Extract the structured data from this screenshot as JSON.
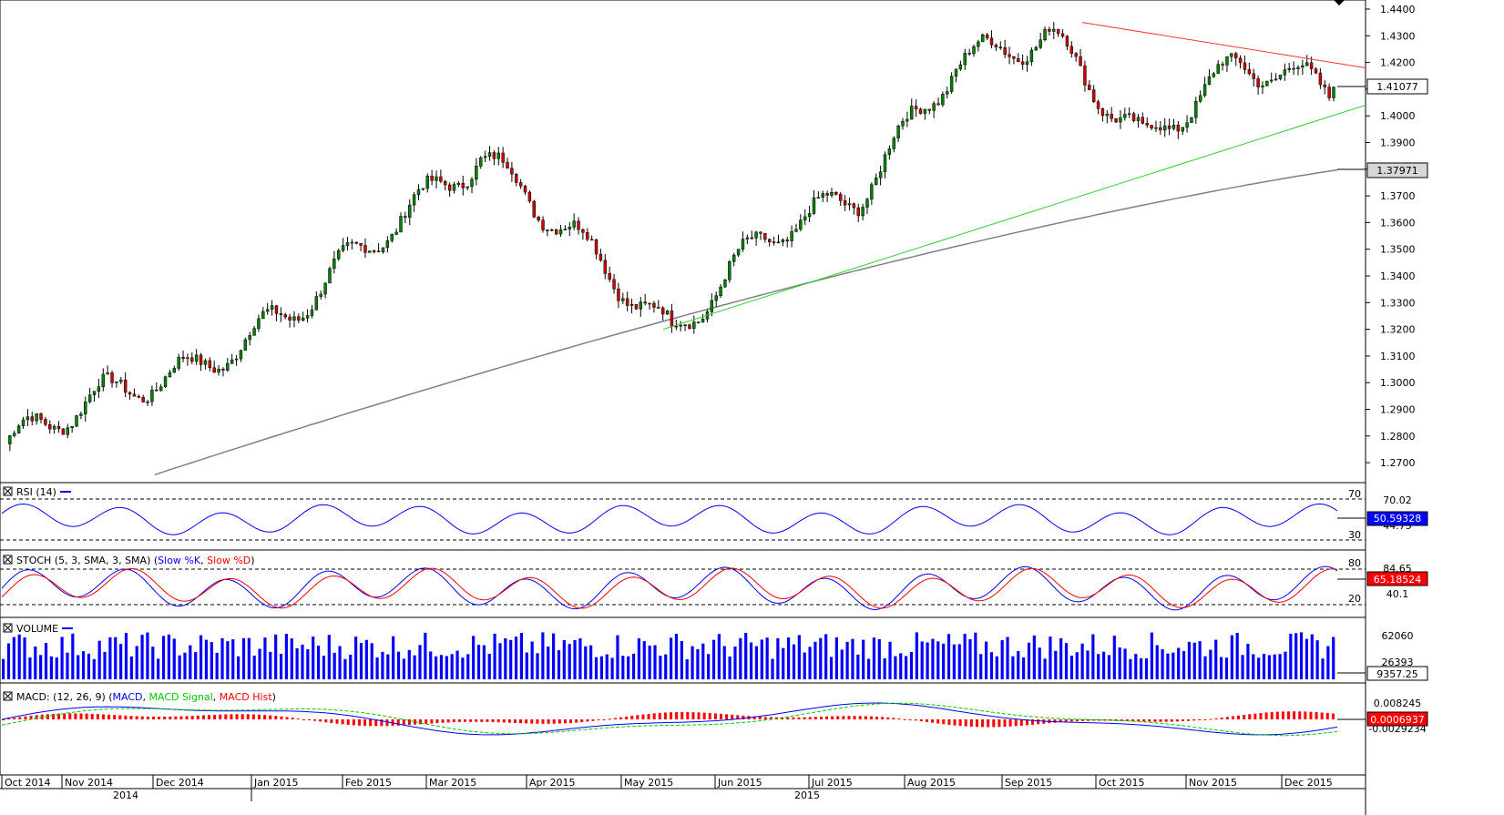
{
  "price_panel": {
    "axis_ticks": [
      "1.4400",
      "1.4300",
      "1.4200",
      "1.4100",
      "1.4000",
      "1.3900",
      "1.3800",
      "1.3700",
      "1.3600",
      "1.3500",
      "1.3400",
      "1.3300",
      "1.3200",
      "1.3100",
      "1.3000",
      "1.2900",
      "1.2800",
      "1.2700"
    ],
    "last_price_label": "1.41077",
    "ma_label": "1.37971",
    "colors": {
      "up": "#008000",
      "down": "#cc0000",
      "ma": "#808080",
      "resistance": "#ff3333",
      "support": "#33cc33"
    }
  },
  "rsi_panel": {
    "title": "RSI (14)",
    "levels": [
      "70",
      "30"
    ],
    "axis_label": "70.02",
    "axis_label_2": "44.75",
    "value_label": "50.59328",
    "color": "#0000ff"
  },
  "stoch_panel": {
    "title": "STOCH (5, 3, SMA, 3, SMA)",
    "legend_k": "Slow %K",
    "legend_d": "Slow %D",
    "levels": [
      "80",
      "20"
    ],
    "axis_label": "84.65",
    "axis_label_2": "40.1",
    "value_label": "65.18524",
    "color_k": "#0000ff",
    "color_d": "#ff0000"
  },
  "volume_panel": {
    "title": "VOLUME",
    "axis_label": "62060",
    "axis_label_2": "26393",
    "value_label": "9357.25",
    "color": "#0000ff"
  },
  "macd_panel": {
    "title": "MACD: (12, 26, 9)",
    "legend_macd": "MACD",
    "legend_signal": "MACD Signal",
    "legend_hist": "MACD Hist",
    "axis_label": "0.008245",
    "axis_label_2": "-0.0029234",
    "value_label": "0.0006937",
    "color_macd": "#0000ff",
    "color_signal": "#00cc00",
    "color_hist": "#ff0000"
  },
  "x_axis": {
    "months": [
      "Oct 2014",
      "Nov 2014",
      "Dec 2014",
      "Jan 2015",
      "Feb 2015",
      "Mar 2015",
      "Apr 2015",
      "May 2015",
      "Jun 2015",
      "Jul 2015",
      "Aug 2015",
      "Sep 2015",
      "Oct 2015",
      "Nov 2015",
      "Dec 2015"
    ],
    "years": [
      "2014",
      "2015"
    ]
  },
  "chart_data": {
    "type": "candlestick",
    "x_range": [
      "Oct 2014",
      "Dec 2015"
    ],
    "ylim": [
      1.265,
      1.445
    ],
    "price_path": {
      "x": [
        "Oct 2014",
        "Nov 2014",
        "Dec 2014",
        "Jan 2015",
        "Feb 2015",
        "Mar 2015",
        "Apr 2015",
        "May 2015",
        "Jun 2015",
        "Jul 2015",
        "Aug 2015",
        "Sep 2015",
        "Oct 2015",
        "Nov 2015",
        "Dec 2015"
      ],
      "close": [
        1.277,
        1.295,
        1.305,
        1.326,
        1.357,
        1.385,
        1.355,
        1.318,
        1.355,
        1.37,
        1.42,
        1.43,
        1.39,
        1.42,
        1.41
      ]
    },
    "last_close": 1.41077,
    "ma_last": 1.37971,
    "trendlines": [
      {
        "name": "resistance",
        "from": [
          "Sep 2015",
          1.435
        ],
        "to": [
          "Dec 2015",
          1.418
        ]
      },
      {
        "name": "support",
        "from": [
          "May 2015",
          1.32
        ],
        "to": [
          "Dec 2015",
          1.404
        ]
      }
    ],
    "indicators": {
      "rsi_last": 50.59328,
      "stoch_last": 65.18524,
      "volume_last": 9357.25,
      "macd_last": 0.0006937
    }
  }
}
